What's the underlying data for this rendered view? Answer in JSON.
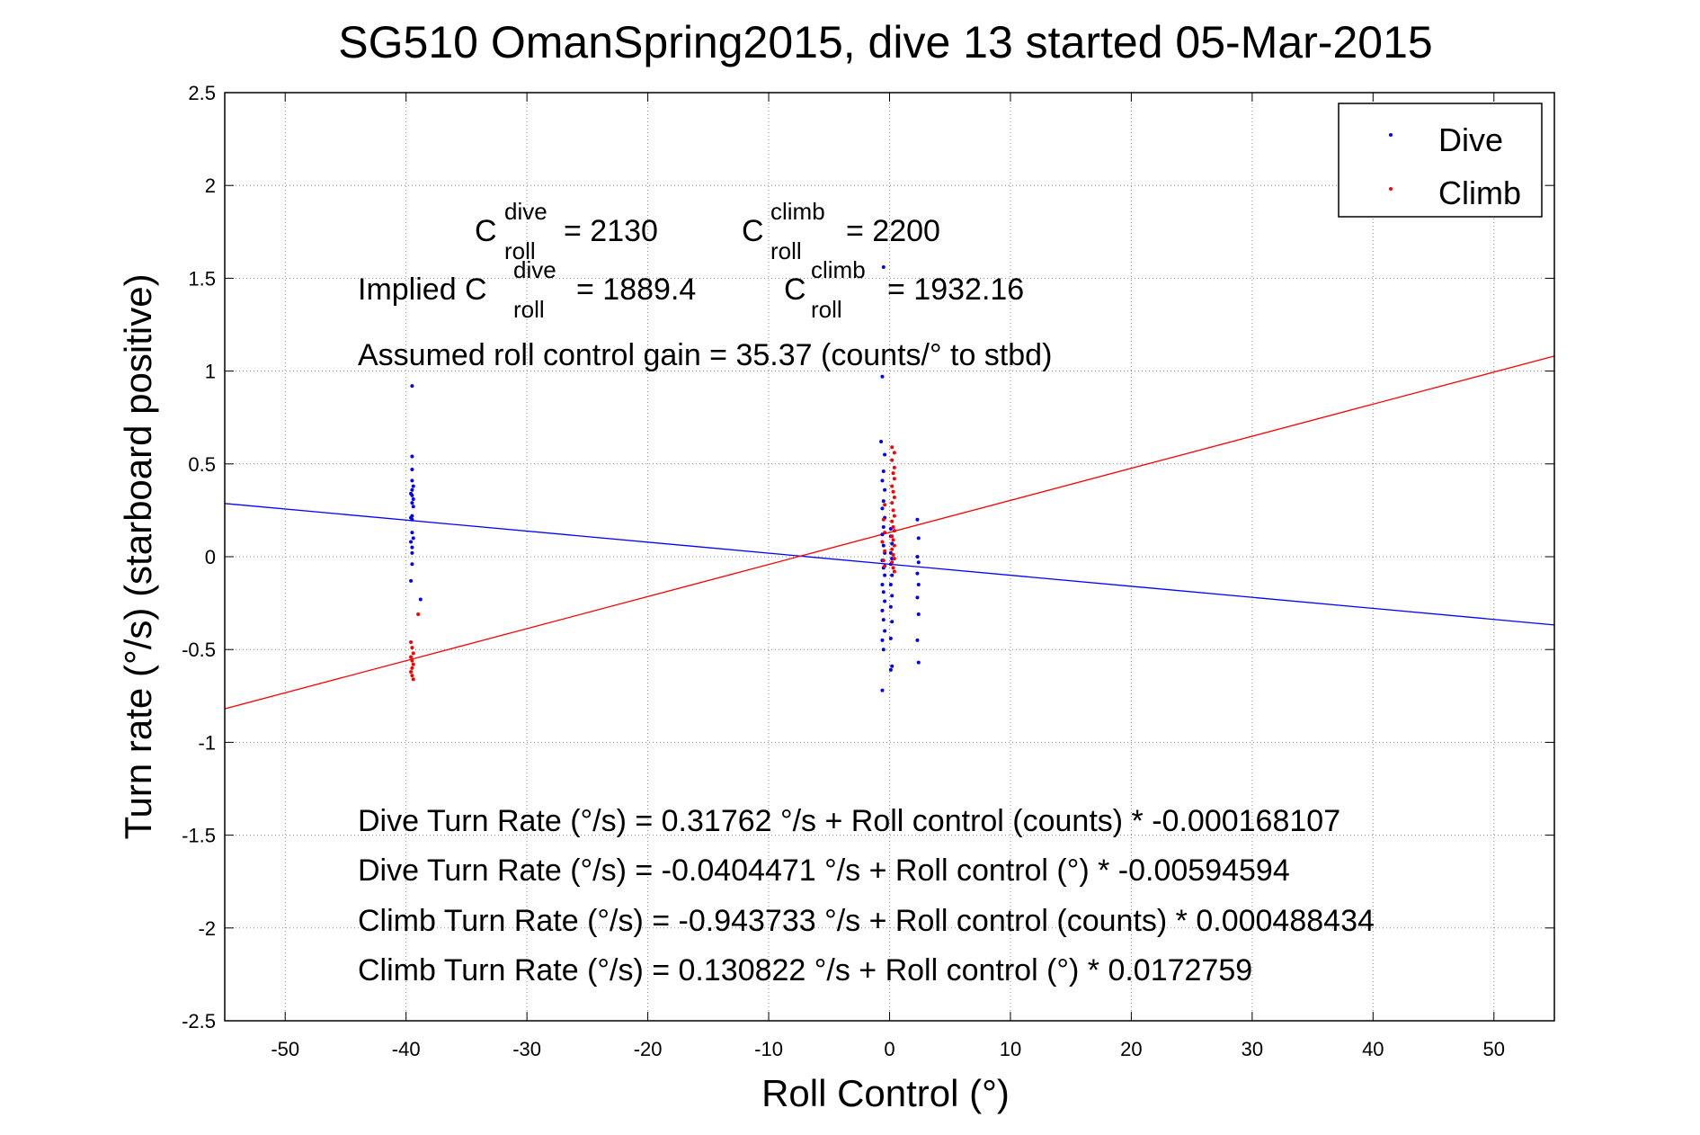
{
  "chart_data": {
    "type": "scatter",
    "title": "SG510 OmanSpring2015, dive 13 started 05-Mar-2015",
    "xlabel": "Roll Control (°)",
    "ylabel": "Turn rate (°/s) (starboard positive)",
    "xlim": [
      -55,
      55
    ],
    "ylim": [
      -2.5,
      2.5
    ],
    "xticks": [
      -50,
      -40,
      -30,
      -20,
      -10,
      0,
      10,
      20,
      30,
      40,
      50
    ],
    "xtick_labels": [
      "-50",
      "-40",
      "-30",
      "-20",
      "-10",
      "0",
      "10",
      "20",
      "30",
      "40",
      "50"
    ],
    "yticks": [
      2.5,
      2,
      1.5,
      1,
      0.5,
      0,
      -0.5,
      -1,
      -1.5,
      -2,
      -2.5
    ],
    "ytick_labels": [
      "2.5",
      "2",
      "1.5",
      "1",
      "0.5",
      "0",
      "-0.5",
      "-1",
      "-1.5",
      "-2",
      "-2.5"
    ],
    "grid": true,
    "legend_position": "top-right",
    "series": [
      {
        "name": "Dive",
        "color": "#0000ff",
        "points": [
          [
            -39.5,
            0.92
          ],
          [
            -39.5,
            0.54
          ],
          [
            -39.5,
            0.47
          ],
          [
            -39.5,
            0.41
          ],
          [
            -39.4,
            0.38
          ],
          [
            -39.5,
            0.36
          ],
          [
            -39.6,
            0.34
          ],
          [
            -39.5,
            0.33
          ],
          [
            -39.4,
            0.31
          ],
          [
            -39.5,
            0.29
          ],
          [
            -39.4,
            0.27
          ],
          [
            -39.5,
            0.22
          ],
          [
            -39.6,
            0.21
          ],
          [
            -39.5,
            0.2
          ],
          [
            -39.5,
            0.13
          ],
          [
            -39.4,
            0.1
          ],
          [
            -39.6,
            0.08
          ],
          [
            -39.5,
            0.05
          ],
          [
            -39.5,
            0.02
          ],
          [
            -39.5,
            -0.04
          ],
          [
            -39.6,
            -0.13
          ],
          [
            -38.8,
            -0.23
          ],
          [
            -0.5,
            1.56
          ],
          [
            -0.6,
            0.97
          ],
          [
            -0.7,
            0.62
          ],
          [
            -0.4,
            0.55
          ],
          [
            -0.5,
            0.46
          ],
          [
            -0.6,
            0.41
          ],
          [
            -0.4,
            0.36
          ],
          [
            -0.5,
            0.3
          ],
          [
            -0.6,
            0.26
          ],
          [
            -0.4,
            0.21
          ],
          [
            -0.5,
            0.16
          ],
          [
            -0.6,
            0.12
          ],
          [
            -0.5,
            0.06
          ],
          [
            -0.4,
            0.02
          ],
          [
            -0.6,
            -0.02
          ],
          [
            -0.5,
            -0.06
          ],
          [
            -0.4,
            -0.1
          ],
          [
            -0.6,
            -0.15
          ],
          [
            -0.5,
            -0.19
          ],
          [
            -0.4,
            -0.24
          ],
          [
            -0.6,
            -0.29
          ],
          [
            -0.5,
            -0.34
          ],
          [
            -0.4,
            -0.4
          ],
          [
            -0.6,
            -0.45
          ],
          [
            -0.5,
            -0.5
          ],
          [
            -0.6,
            -0.72
          ],
          [
            0.1,
            0.15
          ],
          [
            0.1,
            0.11
          ],
          [
            0.2,
            0.07
          ],
          [
            0.1,
            0.02
          ],
          [
            0.2,
            -0.01
          ],
          [
            0.1,
            -0.04
          ],
          [
            0.2,
            -0.1
          ],
          [
            0.1,
            -0.15
          ],
          [
            0.2,
            -0.21
          ],
          [
            0.1,
            -0.27
          ],
          [
            0.2,
            -0.35
          ],
          [
            0.1,
            -0.44
          ],
          [
            0.2,
            -0.59
          ],
          [
            0.1,
            -0.61
          ],
          [
            2.3,
            0.2
          ],
          [
            2.4,
            0.1
          ],
          [
            2.3,
            0.0
          ],
          [
            2.4,
            -0.03
          ],
          [
            2.3,
            -0.09
          ],
          [
            2.4,
            -0.15
          ],
          [
            2.3,
            -0.22
          ],
          [
            2.4,
            -0.31
          ],
          [
            2.3,
            -0.45
          ],
          [
            2.4,
            -0.57
          ]
        ]
      },
      {
        "name": "Climb",
        "color": "#ff0000",
        "points": [
          [
            -39.0,
            -0.31
          ],
          [
            -39.6,
            -0.46
          ],
          [
            -39.5,
            -0.49
          ],
          [
            -39.4,
            -0.52
          ],
          [
            -39.6,
            -0.54
          ],
          [
            -39.5,
            -0.56
          ],
          [
            -39.4,
            -0.58
          ],
          [
            -39.5,
            -0.6
          ],
          [
            -39.6,
            -0.62
          ],
          [
            -39.5,
            -0.64
          ],
          [
            -39.4,
            -0.66
          ],
          [
            0.2,
            0.59
          ],
          [
            0.4,
            0.56
          ],
          [
            0.2,
            0.52
          ],
          [
            0.4,
            0.48
          ],
          [
            0.3,
            0.45
          ],
          [
            0.4,
            0.42
          ],
          [
            0.2,
            0.38
          ],
          [
            0.3,
            0.35
          ],
          [
            0.4,
            0.32
          ],
          [
            0.2,
            0.29
          ],
          [
            0.3,
            0.25
          ],
          [
            0.4,
            0.22
          ],
          [
            0.2,
            0.19
          ],
          [
            0.3,
            0.16
          ],
          [
            0.4,
            0.14
          ],
          [
            0.2,
            0.11
          ],
          [
            0.3,
            0.09
          ],
          [
            0.4,
            0.06
          ],
          [
            0.2,
            0.04
          ],
          [
            0.3,
            0.01
          ],
          [
            0.4,
            -0.01
          ],
          [
            0.2,
            -0.03
          ],
          [
            0.3,
            -0.06
          ],
          [
            0.4,
            -0.08
          ],
          [
            -0.4,
            0.28
          ],
          [
            -0.5,
            0.2
          ],
          [
            -0.4,
            0.13
          ],
          [
            -0.6,
            0.08
          ],
          [
            -0.4,
            0.03
          ],
          [
            -0.5,
            -0.02
          ],
          [
            -0.4,
            -0.05
          ]
        ]
      }
    ],
    "fit_lines": [
      {
        "series": "Dive",
        "color": "#0000ff",
        "intercept": -0.0404471,
        "slope": -0.00594594
      },
      {
        "series": "Climb",
        "color": "#ff0000",
        "intercept": 0.130822,
        "slope": 0.0172759
      }
    ],
    "annotations": {
      "c_roll_dive_label": "C",
      "c_roll_dive_sup": "dive",
      "c_roll_dive_sub": "roll",
      "c_roll_dive_value": "= 2130",
      "c_roll_climb_label": "C",
      "c_roll_climb_sup": "climb",
      "c_roll_climb_sub": "roll",
      "c_roll_climb_value": "= 2200",
      "implied_prefix": "Implied C",
      "implied_dive_sup": "dive",
      "implied_dive_sub": "roll",
      "implied_dive_value": "= 1889.4",
      "implied_climb_label": "C",
      "implied_climb_sup": "climb",
      "implied_climb_sub": "roll",
      "implied_climb_value": "= 1932.16",
      "gain": "Assumed roll control gain = 35.37 (counts/° to stbd)",
      "eq1": "Dive Turn Rate (°/s) = 0.31762 °/s + Roll control (counts) * -0.000168107",
      "eq2": "Dive Turn Rate (°/s) = -0.0404471 °/s + Roll control (°) * -0.00594594",
      "eq3": "Climb Turn Rate (°/s) = -0.943733 °/s + Roll control (counts) * 0.000488434",
      "eq4": "Climb Turn Rate (°/s) = 0.130822 °/s + Roll control (°) * 0.0172759"
    },
    "legend": [
      {
        "label": "Dive",
        "color": "#0000ff"
      },
      {
        "label": "Climb",
        "color": "#ff0000"
      }
    ]
  }
}
